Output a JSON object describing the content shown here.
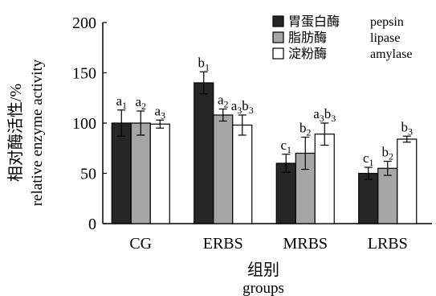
{
  "chart_data": {
    "type": "bar",
    "title": "",
    "xlabel_cn": "组别",
    "xlabel_en": "groups",
    "ylabel_cn": "相对酶活性/%",
    "ylabel_en": "relative enzyme activity",
    "ylim": [
      0,
      200
    ],
    "yticks": [
      0,
      50,
      100,
      150,
      200
    ],
    "grid": false,
    "legend_position": "top-right",
    "categories": [
      "CG",
      "ERBS",
      "MRBS",
      "LRBS"
    ],
    "series": [
      {
        "name_cn": "胃蛋白酶",
        "name_en": "pepsin",
        "color": "#262626",
        "values": [
          100,
          140,
          60,
          50
        ],
        "errors": [
          13,
          11,
          9,
          6
        ],
        "labels": [
          {
            "base": "a",
            "sub": "1"
          },
          {
            "base": "b",
            "sub": "1"
          },
          {
            "base": "c",
            "sub": "1"
          },
          {
            "base": "c",
            "sub": "1"
          }
        ]
      },
      {
        "name_cn": "脂肪酶",
        "name_en": "lipase",
        "color": "#a6a6a6",
        "values": [
          100,
          108,
          70,
          55
        ],
        "errors": [
          12,
          6,
          16,
          7
        ],
        "labels": [
          {
            "base": "a",
            "sub": "2"
          },
          {
            "base": "a",
            "sub": "2"
          },
          {
            "base": "b",
            "sub": "2"
          },
          {
            "base": "b",
            "sub": "2"
          }
        ]
      },
      {
        "name_cn": "淀粉酶",
        "name_en": "amylase",
        "color": "#ffffff",
        "values": [
          99,
          98,
          89,
          84
        ],
        "errors": [
          4,
          10,
          11,
          3
        ],
        "labels": [
          {
            "base": "a",
            "sub": "3"
          },
          {
            "base": "a",
            "sub": "3",
            "base2": "b",
            "sub2": "3"
          },
          {
            "base": "a",
            "sub": "3",
            "base2": "b",
            "sub2": "3"
          },
          {
            "base": "b",
            "sub": "3"
          }
        ]
      }
    ]
  }
}
